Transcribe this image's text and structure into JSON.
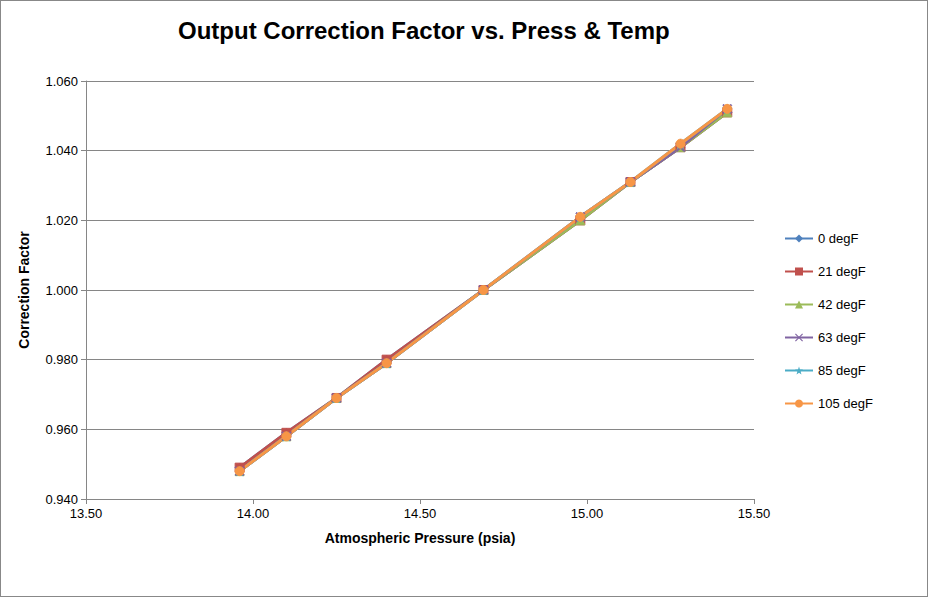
{
  "chart_data": {
    "type": "line",
    "title": "Output Correction Factor vs. Press & Temp",
    "x_label": "Atmospheric Pressure (psia)",
    "y_label": "Correction Factor",
    "x": [
      13.96,
      14.1,
      14.25,
      14.4,
      14.69,
      14.98,
      15.13,
      15.28,
      15.42
    ],
    "series": [
      {
        "name": "0 degF",
        "color": "#4f81bd",
        "marker": "diamond",
        "values": [
          0.949,
          0.959,
          0.969,
          0.98,
          1.0,
          1.02,
          1.031,
          1.041,
          1.051
        ]
      },
      {
        "name": "21 degF",
        "color": "#c0504d",
        "marker": "square",
        "values": [
          0.949,
          0.959,
          0.969,
          0.98,
          1.0,
          1.02,
          1.031,
          1.041,
          1.051
        ]
      },
      {
        "name": "42 degF",
        "color": "#9bbb59",
        "marker": "triangle",
        "values": [
          0.948,
          0.958,
          0.969,
          0.979,
          1.0,
          1.02,
          1.031,
          1.041,
          1.051
        ]
      },
      {
        "name": "63 degF",
        "color": "#8064a2",
        "marker": "x",
        "values": [
          0.948,
          0.958,
          0.969,
          0.979,
          1.0,
          1.021,
          1.031,
          1.041,
          1.052
        ]
      },
      {
        "name": "85 degF",
        "color": "#4bacc6",
        "marker": "star",
        "values": [
          0.948,
          0.958,
          0.969,
          0.979,
          1.0,
          1.021,
          1.031,
          1.042,
          1.052
        ]
      },
      {
        "name": "105 degF",
        "color": "#f79646",
        "marker": "circle",
        "values": [
          0.948,
          0.958,
          0.969,
          0.979,
          1.0,
          1.021,
          1.031,
          1.042,
          1.052
        ]
      }
    ],
    "xlim": [
      13.5,
      15.5
    ],
    "xticks": [
      {
        "value": 13.5,
        "label": "13.50"
      },
      {
        "value": 14.0,
        "label": "14.00"
      },
      {
        "value": 14.5,
        "label": "14.50"
      },
      {
        "value": 15.0,
        "label": "15.00"
      },
      {
        "value": 15.5,
        "label": "15.50"
      }
    ],
    "ylim": [
      0.94,
      1.06
    ],
    "yticks": [
      {
        "value": 0.94,
        "label": "0.940"
      },
      {
        "value": 0.96,
        "label": "0.960"
      },
      {
        "value": 0.98,
        "label": "0.980"
      },
      {
        "value": 1.0,
        "label": "1.000"
      },
      {
        "value": 1.02,
        "label": "1.020"
      },
      {
        "value": 1.04,
        "label": "1.040"
      },
      {
        "value": 1.06,
        "label": "1.060"
      }
    ],
    "grid": true,
    "legend": "right"
  }
}
